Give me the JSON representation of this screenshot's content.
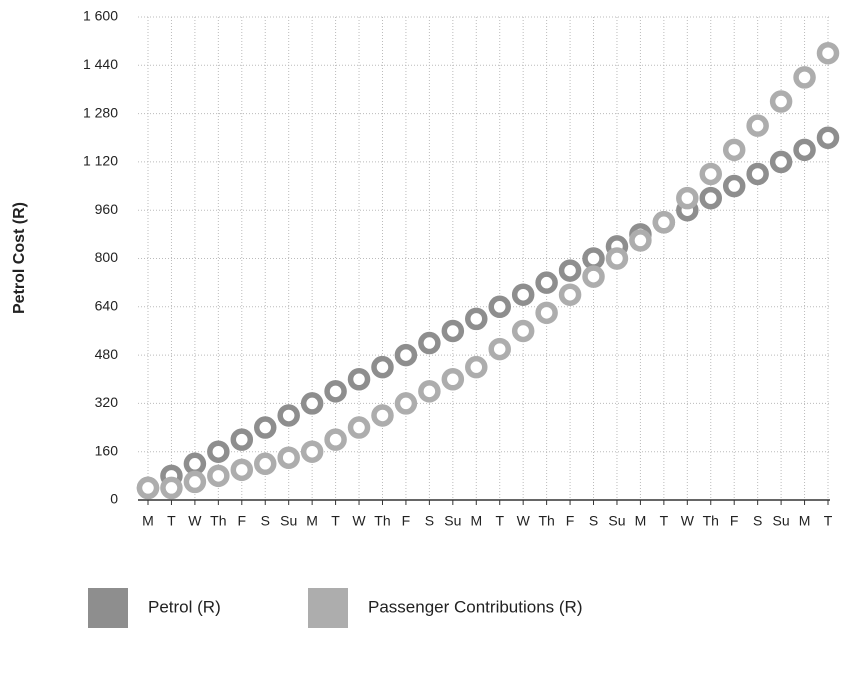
{
  "chart_data": {
    "type": "line",
    "y_label": "Petrol Cost (R)",
    "categories": [
      "M",
      "T",
      "W",
      "Th",
      "F",
      "S",
      "Su",
      "M",
      "T",
      "W",
      "Th",
      "F",
      "S",
      "Su",
      "M",
      "T",
      "W",
      "Th",
      "F",
      "S",
      "Su",
      "M",
      "T",
      "W",
      "Th",
      "F",
      "S",
      "Su",
      "M",
      "T"
    ],
    "series": [
      {
        "name": "Petrol (R)",
        "color": "#8e8e8e",
        "values": [
          40,
          80,
          120,
          160,
          200,
          240,
          280,
          320,
          360,
          400,
          440,
          480,
          520,
          560,
          600,
          640,
          680,
          720,
          760,
          800,
          840,
          880,
          920,
          960,
          1000,
          1040,
          1080,
          1120,
          1160,
          1200
        ]
      },
      {
        "name": "Passenger Contributions (R)",
        "color": "#adadad",
        "values": [
          40,
          40,
          60,
          80,
          100,
          120,
          140,
          160,
          200,
          240,
          280,
          320,
          360,
          400,
          440,
          500,
          560,
          620,
          680,
          740,
          800,
          860,
          920,
          1000,
          1080,
          1160,
          1240,
          1320,
          1400,
          1480
        ]
      }
    ],
    "ylim": [
      0,
      1600
    ],
    "yticks": [
      0,
      160,
      320,
      480,
      640,
      800,
      960,
      {
        "value": 1120,
        "label": "1 120"
      },
      {
        "value": 1280,
        "label": "1 280"
      },
      {
        "value": 1440,
        "label": "1 440"
      },
      {
        "value": 1600,
        "label": "1 600"
      }
    ],
    "grid": true
  }
}
